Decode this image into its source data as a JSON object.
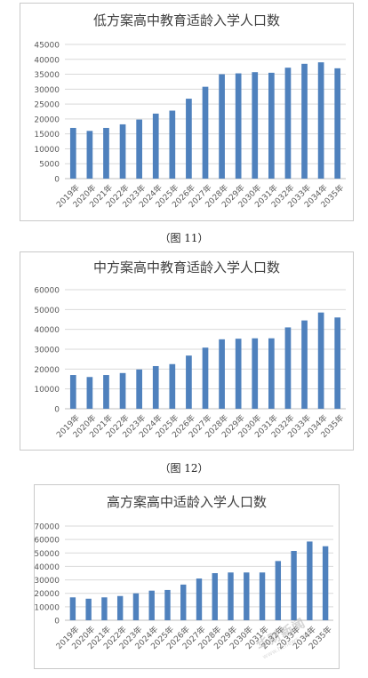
{
  "captions": [
    "（图 11）",
    "（图 12）"
  ],
  "chart_data": [
    {
      "type": "bar",
      "title": "低方案高中教育适龄入学人口数",
      "categories": [
        "2019年",
        "2020年",
        "2021年",
        "2022年",
        "2023年",
        "2024年",
        "2025年",
        "2026年",
        "2027年",
        "2028年",
        "2029年",
        "2030年",
        "2031年",
        "2032年",
        "2033年",
        "2034年",
        "2035年"
      ],
      "series": [
        {
          "values": [
            17000,
            16000,
            17000,
            18200,
            19800,
            21800,
            22800,
            26800,
            30800,
            35000,
            35300,
            35700,
            35500,
            37200,
            38500,
            39000,
            37000
          ]
        }
      ],
      "yticks": [
        "0",
        "5000",
        "10000",
        "15000",
        "20000",
        "25000",
        "30000",
        "35000",
        "40000",
        "45000"
      ],
      "ylim": [
        0,
        45000
      ],
      "grid": true,
      "color": "#4f81bd"
    },
    {
      "type": "bar",
      "title": "中方案高中教育适龄入学人口数",
      "categories": [
        "2019年",
        "2020年",
        "2021年",
        "2022年",
        "2023年",
        "2024年",
        "2025年",
        "2026年",
        "2027年",
        "2028年",
        "2029年",
        "2030年",
        "2031年",
        "2032年",
        "2033年",
        "2034年",
        "2035年"
      ],
      "series": [
        {
          "values": [
            17000,
            16000,
            17000,
            18000,
            19800,
            21500,
            22500,
            26800,
            30800,
            35000,
            35300,
            35500,
            35500,
            41000,
            44500,
            48500,
            46000
          ]
        }
      ],
      "yticks": [
        "0",
        "10000",
        "20000",
        "30000",
        "40000",
        "50000",
        "60000"
      ],
      "ylim": [
        0,
        60000
      ],
      "grid": true,
      "color": "#4f81bd"
    },
    {
      "type": "bar",
      "title": "高方案高中适龄入学人口数",
      "categories": [
        "2019年",
        "2020年",
        "2021年",
        "2022年",
        "2023年",
        "2024年",
        "2025年",
        "2026年",
        "2027年",
        "2028年",
        "2029年",
        "2030年",
        "2031年",
        "2032年",
        "2033年",
        "2034年",
        "2035年"
      ],
      "series": [
        {
          "values": [
            17000,
            16000,
            17000,
            18000,
            20000,
            22000,
            22500,
            26500,
            31000,
            35000,
            35500,
            35500,
            35500,
            44000,
            51500,
            58500,
            55000
          ]
        }
      ],
      "yticks": [
        "0",
        "10000",
        "20000",
        "30000",
        "40000",
        "50000",
        "60000",
        "70000"
      ],
      "ylim": [
        0,
        70000
      ],
      "grid": true,
      "color": "#4f81bd"
    }
  ],
  "watermark": {
    "text": "华财新闻",
    "url": "www.hcnews.com"
  }
}
